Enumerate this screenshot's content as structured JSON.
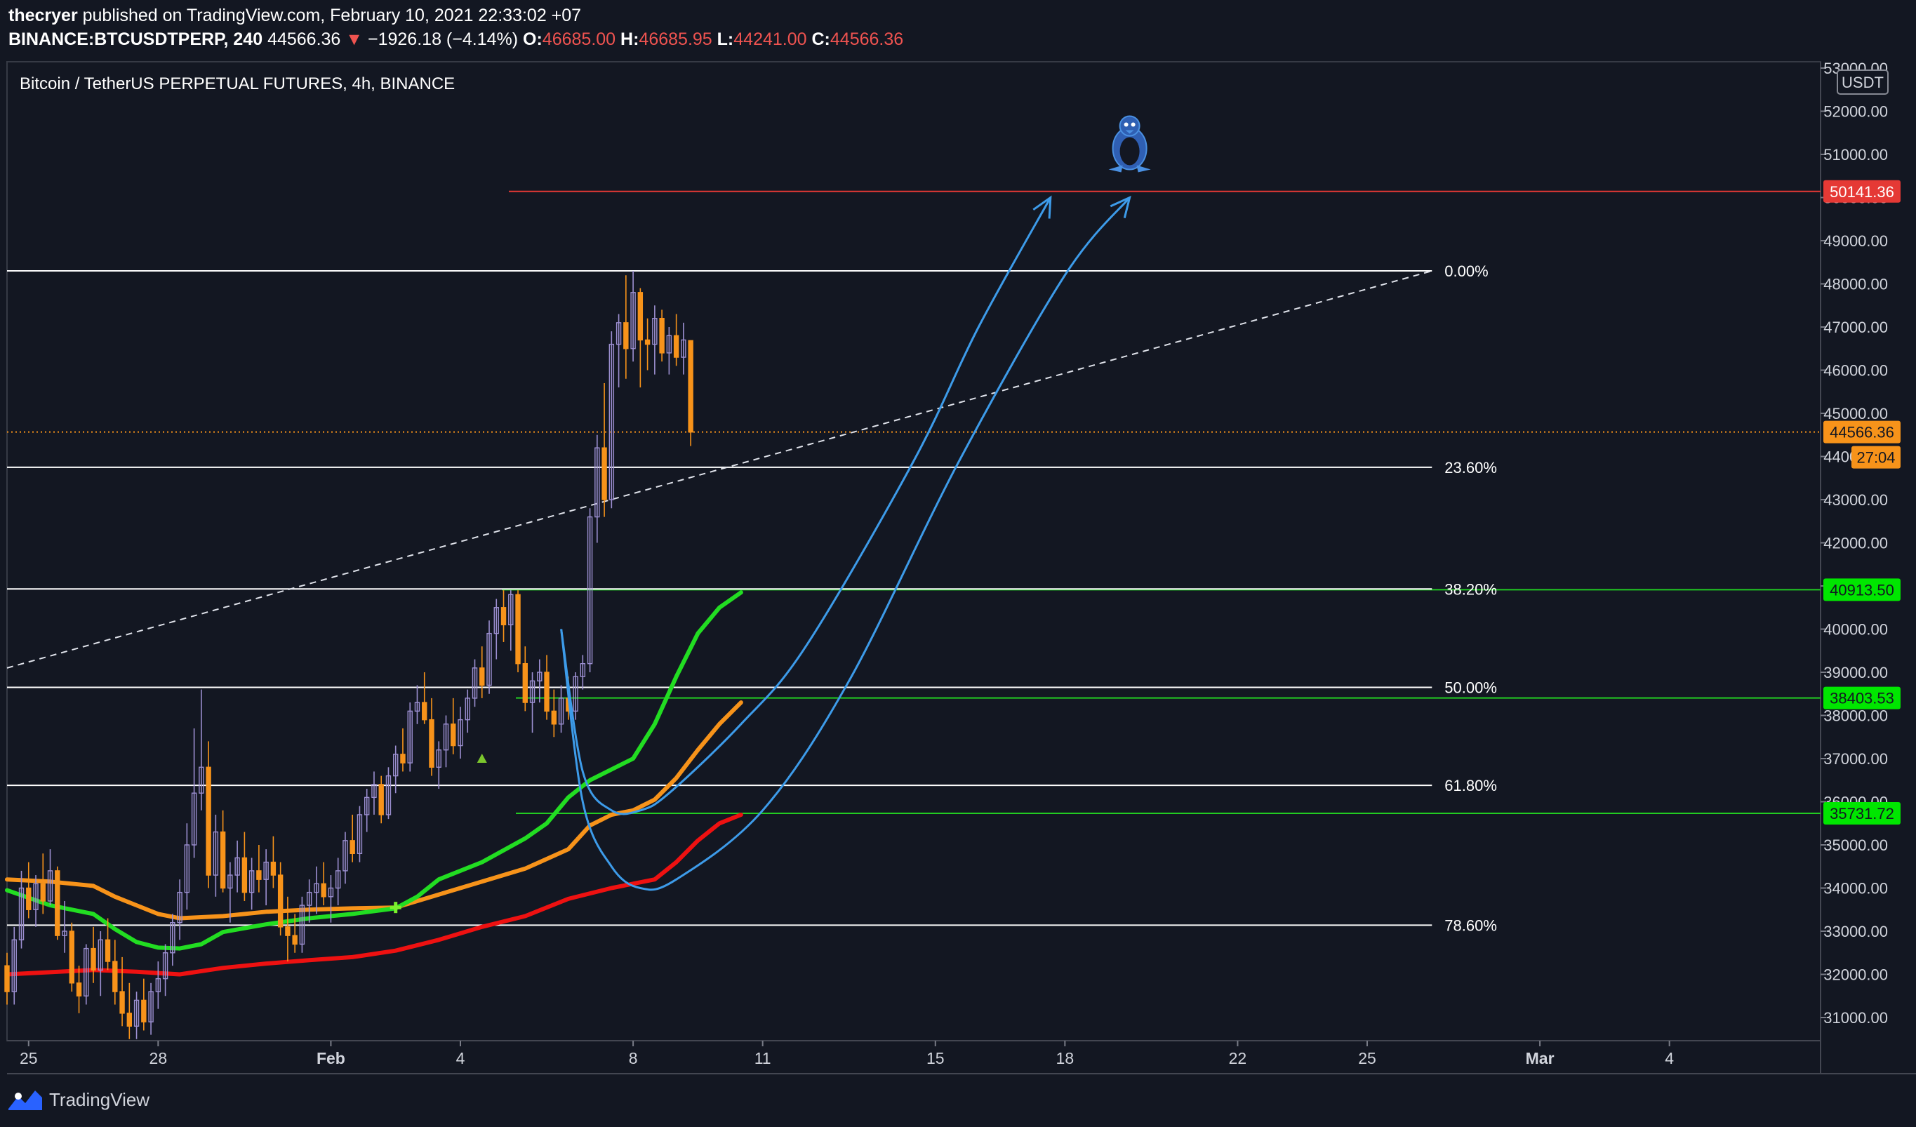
{
  "header": {
    "author": "thecryer",
    "published_text": "published on TradingView.com, February 10, 2021 22:33:02 +07",
    "symbol_interval": "BINANCE:BTCUSDTPERP, 240",
    "last_price": "44566.36",
    "down_arrow": "▼",
    "change": "−1926.18 (−4.14%)",
    "o_label": "O:",
    "o_value": "46685.00",
    "h_label": "H:",
    "h_value": "46685.95",
    "l_label": "L:",
    "l_value": "44241.00",
    "c_label": "C:",
    "c_value": "44566.36"
  },
  "legend_title": "Bitcoin / TetherUS PERPETUAL FUTURES, 4h, BINANCE",
  "footer": {
    "brand": "TradingView"
  },
  "colors": {
    "background": "#131722",
    "up_candle": "#9c8fd1",
    "down_candle": "#f7931a",
    "ema_fast": "#22dd22",
    "ema_mid": "#f7931a",
    "ema_slow": "#ee1111",
    "fib_line": "#ffffff",
    "green_level": "#22cc22",
    "red_level": "#e53935",
    "arrow": "#3d9be9",
    "price_tag": "#f7931a"
  },
  "chart_data": {
    "type": "candlestick",
    "title": "Bitcoin / TetherUS PERPETUAL FUTURES, 4h, BINANCE",
    "currency": "USDT",
    "ylim": [
      30500,
      53000
    ],
    "y_ticks": [
      "31000.00",
      "32000.00",
      "33000.00",
      "34000.00",
      "35000.00",
      "36000.00",
      "37000.00",
      "38000.00",
      "39000.00",
      "40000.00",
      "41000.00",
      "42000.00",
      "43000.00",
      "44000.00",
      "45000.00",
      "46000.00",
      "47000.00",
      "48000.00",
      "49000.00",
      "50000.00",
      "51000.00",
      "52000.00",
      "53000.00"
    ],
    "x_labels": [
      {
        "label": "25",
        "date": "2021-01-25"
      },
      {
        "label": "28",
        "date": "2021-01-28"
      },
      {
        "label": "Feb",
        "date": "2021-02-01"
      },
      {
        "label": "4",
        "date": "2021-02-04"
      },
      {
        "label": "8",
        "date": "2021-02-08"
      },
      {
        "label": "11",
        "date": "2021-02-11"
      },
      {
        "label": "15",
        "date": "2021-02-15"
      },
      {
        "label": "18",
        "date": "2021-02-18"
      },
      {
        "label": "22",
        "date": "2021-02-22"
      },
      {
        "label": "25",
        "date": "2021-02-25"
      },
      {
        "label": "Mar",
        "date": "2021-03-01"
      },
      {
        "label": "4",
        "date": "2021-03-04"
      }
    ],
    "xlim": [
      "2021-01-24T12:00",
      "2021-03-07T12:00"
    ],
    "fib_levels": [
      {
        "label": "0.00%",
        "price": 48300
      },
      {
        "label": "23.60%",
        "price": 43750
      },
      {
        "label": "38.20%",
        "price": 40930
      },
      {
        "label": "50.00%",
        "price": 38650
      },
      {
        "label": "61.80%",
        "price": 36380
      },
      {
        "label": "78.60%",
        "price": 33140
      }
    ],
    "horizontal_levels": [
      {
        "price": 50141.36,
        "label": "50141.36",
        "color": "red"
      },
      {
        "price": 40913.5,
        "label": "40913.50",
        "color": "green"
      },
      {
        "price": 38403.53,
        "label": "38403.53",
        "color": "green"
      },
      {
        "price": 35731.72,
        "label": "35731.72",
        "color": "green"
      }
    ],
    "current_price": {
      "price": 44566.36,
      "label": "44566.36",
      "countdown": "27:04"
    },
    "trendline": {
      "from": {
        "date": "2021-01-24T12:00",
        "price": 39100
      },
      "to": {
        "date": "2021-02-26T12:00",
        "price": 48300
      }
    },
    "ema_fast": [
      [
        "2021-01-24T12:00",
        33950
      ],
      [
        "2021-01-25T12:00",
        33600
      ],
      [
        "2021-01-26T12:00",
        33400
      ],
      [
        "2021-01-27T00:00",
        33050
      ],
      [
        "2021-01-27T12:00",
        32750
      ],
      [
        "2021-01-28T00:00",
        32620
      ],
      [
        "2021-01-28T12:00",
        32600
      ],
      [
        "2021-01-29T00:00",
        32700
      ],
      [
        "2021-01-29T12:00",
        32980
      ],
      [
        "2021-01-30T12:00",
        33160
      ],
      [
        "2021-01-31T12:00",
        33300
      ],
      [
        "2021-02-01T12:00",
        33400
      ],
      [
        "2021-02-02T12:00",
        33530
      ],
      [
        "2021-02-03T00:00",
        33800
      ],
      [
        "2021-02-03T12:00",
        34200
      ],
      [
        "2021-02-04T12:00",
        34600
      ],
      [
        "2021-02-05T12:00",
        35150
      ],
      [
        "2021-02-06T00:00",
        35500
      ],
      [
        "2021-02-06T12:00",
        36100
      ],
      [
        "2021-02-07T00:00",
        36500
      ],
      [
        "2021-02-07T12:00",
        36750
      ],
      [
        "2021-02-08T00:00",
        37000
      ],
      [
        "2021-02-08T12:00",
        37800
      ],
      [
        "2021-02-09T00:00",
        38900
      ],
      [
        "2021-02-09T12:00",
        39900
      ],
      [
        "2021-02-10T00:00",
        40500
      ],
      [
        "2021-02-10T12:00",
        40850
      ]
    ],
    "ema_mid": [
      [
        "2021-01-24T12:00",
        34200
      ],
      [
        "2021-01-25T12:00",
        34150
      ],
      [
        "2021-01-26T12:00",
        34050
      ],
      [
        "2021-01-27T00:00",
        33800
      ],
      [
        "2021-01-27T12:00",
        33600
      ],
      [
        "2021-01-28T00:00",
        33400
      ],
      [
        "2021-01-28T12:00",
        33300
      ],
      [
        "2021-01-29T12:00",
        33350
      ],
      [
        "2021-01-30T12:00",
        33450
      ],
      [
        "2021-01-31T12:00",
        33500
      ],
      [
        "2021-02-01T12:00",
        33530
      ],
      [
        "2021-02-02T12:00",
        33550
      ],
      [
        "2021-02-03T12:00",
        33850
      ],
      [
        "2021-02-04T12:00",
        34150
      ],
      [
        "2021-02-05T12:00",
        34450
      ],
      [
        "2021-02-06T12:00",
        34900
      ],
      [
        "2021-02-07T00:00",
        35450
      ],
      [
        "2021-02-07T12:00",
        35700
      ],
      [
        "2021-02-08T00:00",
        35800
      ],
      [
        "2021-02-08T12:00",
        36050
      ],
      [
        "2021-02-09T00:00",
        36550
      ],
      [
        "2021-02-09T12:00",
        37200
      ],
      [
        "2021-02-10T00:00",
        37800
      ],
      [
        "2021-02-10T12:00",
        38300
      ]
    ],
    "ema_slow": [
      [
        "2021-01-24T12:00",
        32000
      ],
      [
        "2021-01-25T12:00",
        32050
      ],
      [
        "2021-01-26T12:00",
        32100
      ],
      [
        "2021-01-27T12:00",
        32060
      ],
      [
        "2021-01-28T12:00",
        32000
      ],
      [
        "2021-01-29T12:00",
        32150
      ],
      [
        "2021-01-30T12:00",
        32250
      ],
      [
        "2021-01-31T12:00",
        32330
      ],
      [
        "2021-02-01T12:00",
        32400
      ],
      [
        "2021-02-02T12:00",
        32550
      ],
      [
        "2021-02-03T12:00",
        32800
      ],
      [
        "2021-02-04T12:00",
        33100
      ],
      [
        "2021-02-05T12:00",
        33350
      ],
      [
        "2021-02-06T12:00",
        33750
      ],
      [
        "2021-02-07T12:00",
        34000
      ],
      [
        "2021-02-08T12:00",
        34200
      ],
      [
        "2021-02-09T00:00",
        34600
      ],
      [
        "2021-02-09T12:00",
        35100
      ],
      [
        "2021-02-10T00:00",
        35500
      ],
      [
        "2021-02-10T12:00",
        35700
      ]
    ],
    "candles_ohlc": [
      [
        32200,
        32500,
        31300,
        31600
      ],
      [
        31600,
        33100,
        31300,
        32800
      ],
      [
        32800,
        34400,
        32600,
        34000
      ],
      [
        34000,
        34600,
        33300,
        33500
      ],
      [
        33500,
        34300,
        33100,
        34100
      ],
      [
        34100,
        34800,
        33400,
        33700
      ],
      [
        33700,
        34900,
        33600,
        34400
      ],
      [
        34400,
        34500,
        32800,
        32900
      ],
      [
        32900,
        33700,
        32500,
        33000
      ],
      [
        33000,
        33200,
        31600,
        31800
      ],
      [
        31800,
        32200,
        31100,
        31500
      ],
      [
        31500,
        32700,
        31300,
        32600
      ],
      [
        32600,
        33100,
        31800,
        32100
      ],
      [
        32100,
        33000,
        31500,
        32800
      ],
      [
        32800,
        33300,
        32100,
        32300
      ],
      [
        32300,
        32800,
        31300,
        31600
      ],
      [
        31600,
        32400,
        30800,
        31100
      ],
      [
        31100,
        31800,
        30500,
        30800
      ],
      [
        30800,
        31600,
        30500,
        31400
      ],
      [
        31400,
        31900,
        30700,
        30900
      ],
      [
        30900,
        31800,
        30600,
        31600
      ],
      [
        31600,
        32300,
        31200,
        31900
      ],
      [
        31900,
        32700,
        31500,
        32500
      ],
      [
        32500,
        33400,
        32200,
        33200
      ],
      [
        33200,
        34200,
        32800,
        33900
      ],
      [
        33900,
        35500,
        33500,
        35000
      ],
      [
        35000,
        37700,
        34700,
        36200
      ],
      [
        36200,
        38600,
        35800,
        36800
      ],
      [
        36800,
        37400,
        34000,
        34300
      ],
      [
        34300,
        35700,
        33800,
        35300
      ],
      [
        35300,
        35800,
        33900,
        34000
      ],
      [
        34000,
        34600,
        33200,
        34300
      ],
      [
        34300,
        35100,
        33900,
        34700
      ],
      [
        34700,
        35300,
        33700,
        33900
      ],
      [
        33900,
        34700,
        33500,
        34400
      ],
      [
        34400,
        35000,
        33900,
        34200
      ],
      [
        34200,
        34900,
        33600,
        34600
      ],
      [
        34600,
        35200,
        34000,
        34300
      ],
      [
        34300,
        34600,
        32900,
        33100
      ],
      [
        33100,
        33800,
        32300,
        32900
      ],
      [
        32900,
        33400,
        32500,
        32700
      ],
      [
        32700,
        33800,
        32500,
        33600
      ],
      [
        33600,
        34200,
        33200,
        33900
      ],
      [
        33900,
        34500,
        33400,
        34100
      ],
      [
        34100,
        34600,
        33600,
        33800
      ],
      [
        33800,
        34300,
        33200,
        34000
      ],
      [
        34000,
        34700,
        33600,
        34400
      ],
      [
        34400,
        35300,
        34100,
        35100
      ],
      [
        35100,
        35700,
        34600,
        34800
      ],
      [
        34800,
        35900,
        34600,
        35700
      ],
      [
        35700,
        36300,
        35300,
        36100
      ],
      [
        36100,
        36700,
        35700,
        36400
      ],
      [
        36400,
        36600,
        35500,
        35700
      ],
      [
        35700,
        36800,
        35600,
        36600
      ],
      [
        36600,
        37300,
        36200,
        37100
      ],
      [
        37100,
        37700,
        36700,
        36900
      ],
      [
        36900,
        38300,
        36700,
        38100
      ],
      [
        38100,
        38700,
        37800,
        38300
      ],
      [
        38300,
        39000,
        37800,
        37900
      ],
      [
        37900,
        38400,
        36600,
        36800
      ],
      [
        36800,
        37400,
        36300,
        37200
      ],
      [
        37200,
        38000,
        36800,
        37800
      ],
      [
        37800,
        38400,
        37100,
        37300
      ],
      [
        37300,
        38200,
        37000,
        37900
      ],
      [
        37900,
        38600,
        37600,
        38400
      ],
      [
        38400,
        39300,
        38200,
        39100
      ],
      [
        39100,
        39600,
        38400,
        38700
      ],
      [
        38700,
        40200,
        38500,
        39900
      ],
      [
        39900,
        40700,
        39300,
        40500
      ],
      [
        40500,
        40900,
        39700,
        40100
      ],
      [
        40100,
        40900,
        39500,
        40800
      ],
      [
        40800,
        40900,
        39000,
        39200
      ],
      [
        39200,
        39600,
        38100,
        38300
      ],
      [
        38300,
        39000,
        37600,
        38800
      ],
      [
        38800,
        39300,
        38300,
        39000
      ],
      [
        39000,
        39400,
        37900,
        38100
      ],
      [
        38100,
        38600,
        37500,
        37800
      ],
      [
        37800,
        38700,
        37600,
        38400
      ],
      [
        38400,
        38900,
        37900,
        38100
      ],
      [
        38100,
        39000,
        37900,
        38900
      ],
      [
        38900,
        39400,
        38600,
        39200
      ],
      [
        39200,
        42800,
        39000,
        42600
      ],
      [
        42600,
        44500,
        42000,
        44200
      ],
      [
        44200,
        45700,
        42600,
        43000
      ],
      [
        43000,
        46900,
        42800,
        46600
      ],
      [
        46600,
        47300,
        45600,
        47100
      ],
      [
        47100,
        48200,
        45800,
        46500
      ],
      [
        46500,
        48300,
        46200,
        47800
      ],
      [
        47800,
        47900,
        45600,
        46700
      ],
      [
        46700,
        47200,
        46000,
        46600
      ],
      [
        46600,
        47500,
        45900,
        47200
      ],
      [
        47200,
        47400,
        46200,
        46400
      ],
      [
        46400,
        47000,
        45900,
        46800
      ],
      [
        46800,
        47300,
        46100,
        46300
      ],
      [
        46300,
        47100,
        45900,
        46700
      ],
      [
        46685,
        46686,
        44241,
        44566
      ]
    ],
    "candles_first_time": "2021-01-24T12:00",
    "candle_interval_hours": 4,
    "curved_arrows": [
      {
        "points": [
          [
            "2021-02-06T08:00",
            40000
          ],
          [
            "2021-02-06T20:00",
            36700
          ],
          [
            "2021-02-07T12:00",
            35800
          ],
          [
            "2021-02-08T04:00",
            35800
          ],
          [
            "2021-02-08T20:00",
            36200
          ],
          [
            "2021-02-10T12:00",
            37800
          ],
          [
            "2021-02-12T00:00",
            39600
          ],
          [
            "2021-02-14T12:00",
            43900
          ],
          [
            "2021-02-16T00:00",
            47000
          ],
          [
            "2021-02-17T16:00",
            50000
          ]
        ]
      },
      {
        "points": [
          [
            "2021-02-06T08:00",
            40000
          ],
          [
            "2021-02-06T20:00",
            36000
          ],
          [
            "2021-02-07T12:00",
            34500
          ],
          [
            "2021-02-08T04:00",
            34000
          ],
          [
            "2021-02-09T00:00",
            34200
          ],
          [
            "2021-02-11T00:00",
            35800
          ],
          [
            "2021-02-13T00:00",
            38800
          ],
          [
            "2021-02-15T12:00",
            43800
          ],
          [
            "2021-02-18T00:00",
            48200
          ],
          [
            "2021-02-19T12:00",
            50000
          ]
        ]
      }
    ],
    "markers": [
      {
        "date": "2021-02-04T12:00",
        "price": 37000,
        "shape": "triangle-up",
        "color": "green"
      },
      {
        "date": "2021-02-02T12:00",
        "price": 33550,
        "shape": "plus",
        "color": "green"
      }
    ],
    "logo_marker": {
      "date": "2021-02-19T12:00",
      "price": 51300,
      "icon": "penguin-icon"
    }
  }
}
